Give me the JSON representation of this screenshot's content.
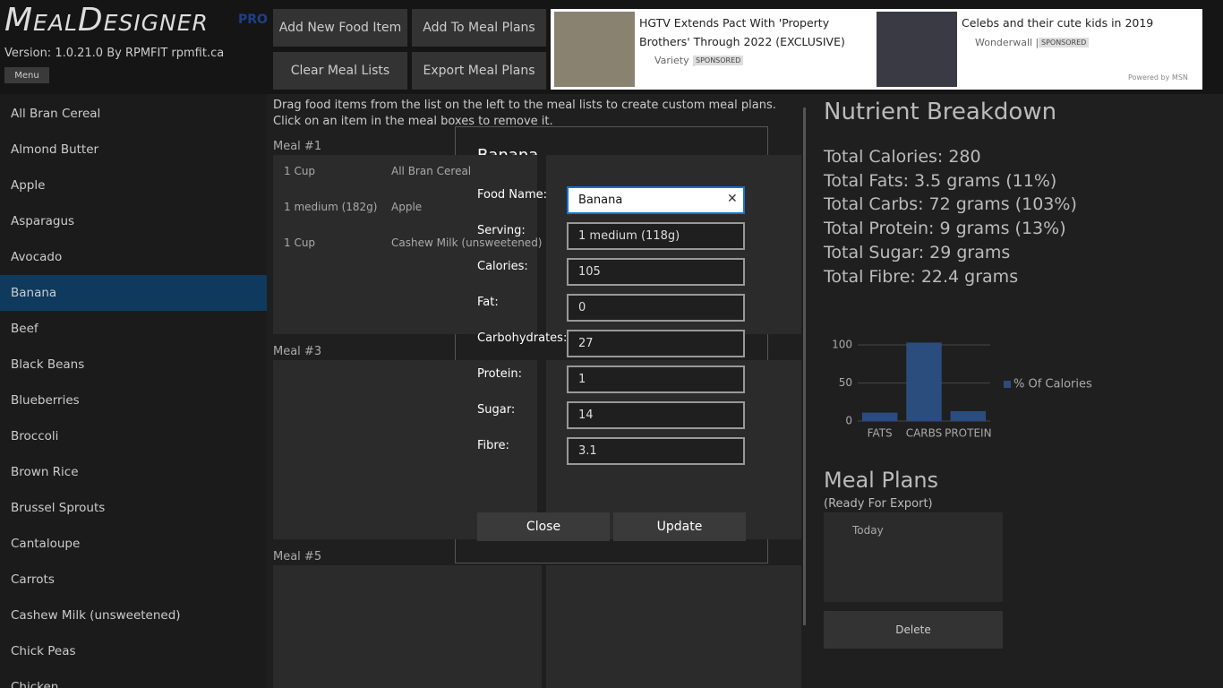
{
  "app": {
    "logo": "MealDesigner",
    "logo_badge": "PRO",
    "version": "Version: 1.0.21.0 By RPMFIT rpmfit.ca",
    "menu": "Menu"
  },
  "toolbar": [
    "Add New Food Item",
    "Add To Meal Plans",
    "Clear Meal Lists",
    "Export Meal Plans"
  ],
  "ads": [
    {
      "headline": "HGTV Extends Pact With 'Property Brothers' Through 2022 (EXCLUSIVE)",
      "source": "Variety |",
      "badge": "SPONSORED"
    },
    {
      "headline": "Celebs and their cute kids in 2019",
      "source": "Wonderwall |",
      "badge": "SPONSORED"
    }
  ],
  "ads_footer": "Powered by MSN",
  "food_list": [
    "All Bran Cereal",
    "Almond Butter",
    "Apple",
    "Asparagus",
    "Avocado",
    "Banana",
    "Beef",
    "Black Beans",
    "Blueberries",
    "Broccoli",
    "Brown Rice",
    "Brussel Sprouts",
    "Cantaloupe",
    "Carrots",
    "Cashew Milk (unsweetened)",
    "Chick Peas",
    "Chicken"
  ],
  "selected_food": 5,
  "instructions": "Drag food items from the list on the left to the meal lists to create custom meal plans.  Click on an item in the meal boxes to remove it.",
  "meals": [
    {
      "label": "Meal #1",
      "items": [
        {
          "serving": "1 Cup",
          "food": "All Bran Cereal"
        },
        {
          "serving": "1 medium (182g)",
          "food": "Apple"
        },
        {
          "serving": "1 Cup",
          "food": "Cashew Milk (unsweetened)"
        }
      ]
    },
    {
      "label": "Meal #3"
    },
    {
      "label": "Meal #5"
    }
  ],
  "nutrients": {
    "title": "Nutrient Breakdown",
    "totals": [
      "Total Calories: 280",
      "Total Fats: 3.5 grams (11%)",
      "Total Carbs: 72 grams (103%)",
      "Total Protein: 9 grams (13%)",
      "Total Sugar: 29 grams",
      "Total Fibre: 22.4 grams"
    ]
  },
  "chart_data": {
    "type": "bar",
    "categories": [
      "FATS",
      "CARBS",
      "PROTEIN"
    ],
    "series": [
      {
        "name": "% Of Calories",
        "color": "#2b4d7e",
        "values": [
          11,
          103,
          13
        ]
      }
    ],
    "ylim": [
      0,
      120
    ],
    "yticks": [
      0,
      50,
      100
    ],
    "grid": true
  },
  "meal_plans": {
    "title": "Meal Plans",
    "subtitle": "(Ready For Export)",
    "items": [
      "Today"
    ],
    "delete": "Delete"
  },
  "dialog": {
    "title": "Banana",
    "fields": [
      {
        "label": "Food Name:",
        "value": "Banana"
      },
      {
        "label": "Serving:",
        "value": "1 medium (118g)"
      },
      {
        "label": "Calories:",
        "value": "105"
      },
      {
        "label": "Fat:",
        "value": "0"
      },
      {
        "label": "Carbohydrates:",
        "value": "27"
      },
      {
        "label": "Protein:",
        "value": "1"
      },
      {
        "label": "Sugar:",
        "value": "14"
      },
      {
        "label": "Fibre:",
        "value": "3.1"
      }
    ],
    "buttons": [
      "Close",
      "Update"
    ]
  }
}
